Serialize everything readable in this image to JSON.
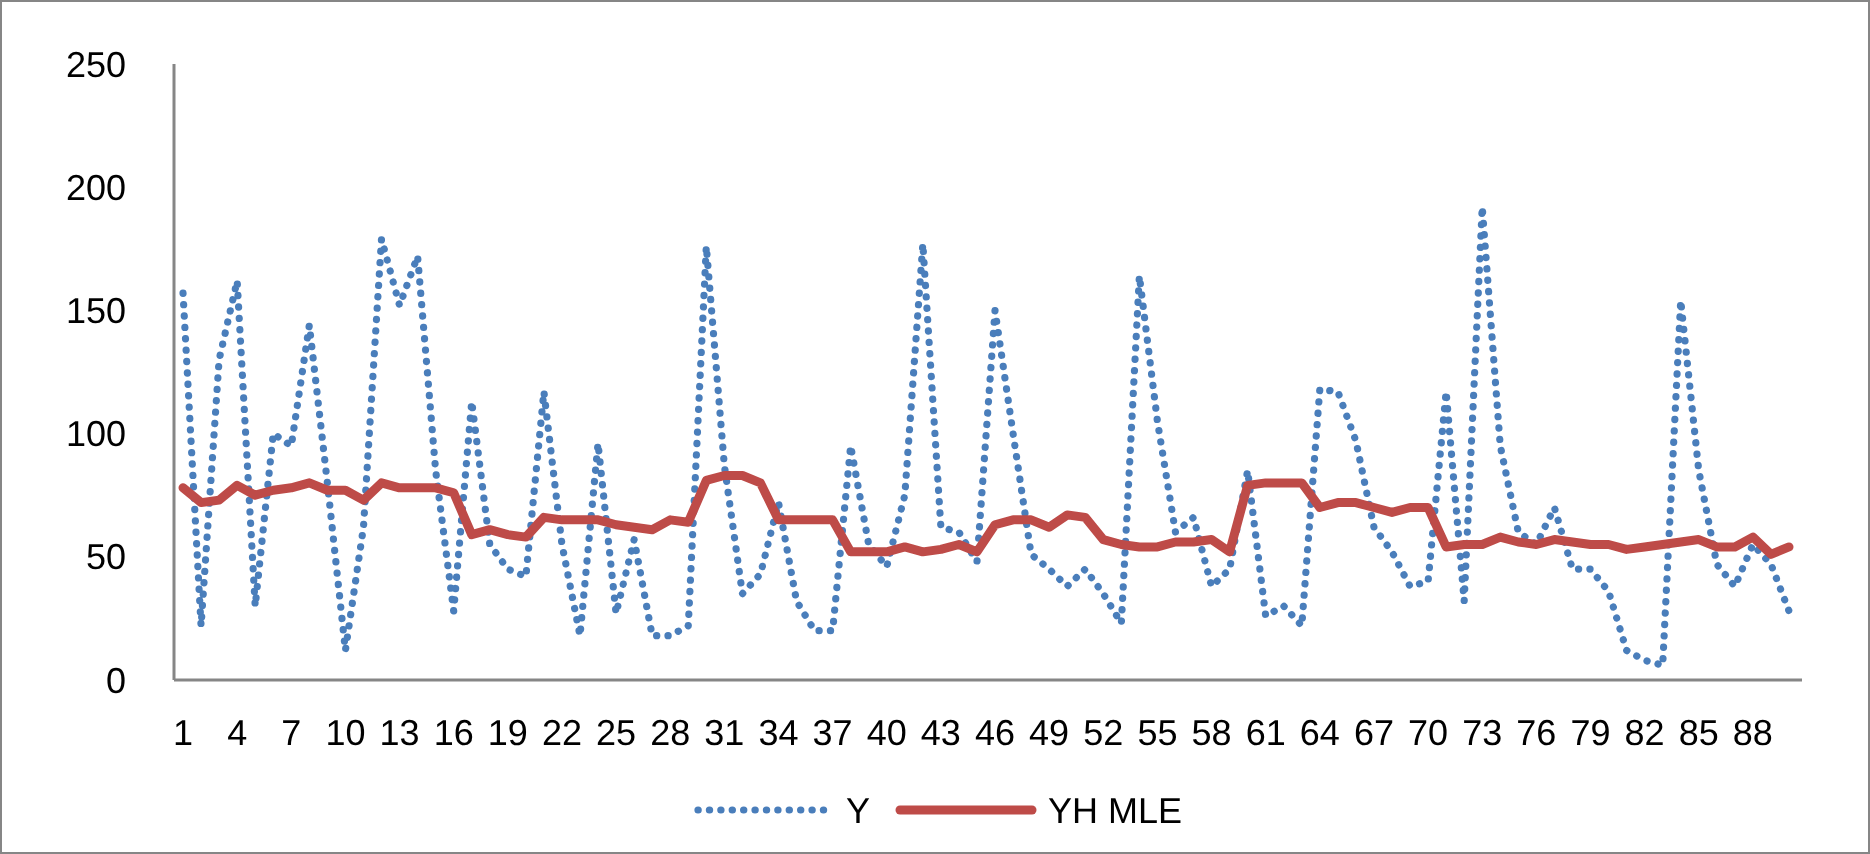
{
  "chart_data": {
    "type": "line",
    "categories": [
      "1",
      null,
      null,
      "4",
      null,
      null,
      "7",
      null,
      null,
      "10",
      null,
      null,
      "13",
      null,
      null,
      "16",
      null,
      null,
      "19",
      null,
      null,
      "22",
      null,
      null,
      "25",
      null,
      null,
      "28",
      null,
      null,
      "31",
      null,
      null,
      "34",
      null,
      null,
      "37",
      null,
      null,
      "40",
      null,
      null,
      "43",
      null,
      null,
      "46",
      null,
      null,
      "49",
      null,
      null,
      "52",
      null,
      null,
      "55",
      null,
      null,
      "58",
      null,
      null,
      "61",
      null,
      null,
      "64",
      null,
      null,
      "67",
      null,
      null,
      "70",
      null,
      null,
      "73",
      null,
      null,
      "76",
      null,
      null,
      "79",
      null,
      null,
      "82",
      null,
      null,
      "85",
      null,
      null,
      "88",
      null,
      null
    ],
    "ylim": [
      0,
      250
    ],
    "yticks": [
      0,
      50,
      100,
      150,
      200,
      250
    ],
    "legend": "bottom",
    "series": [
      {
        "name": "Y",
        "color": "#4a7ebb",
        "line_style": "dotted",
        "values": [
          157,
          22,
          130,
          162,
          30,
          100,
          95,
          144,
          80,
          12,
          62,
          179,
          152,
          172,
          85,
          28,
          113,
          55,
          45,
          42,
          117,
          55,
          18,
          96,
          27,
          57,
          18,
          18,
          22,
          176,
          87,
          35,
          43,
          72,
          32,
          20,
          20,
          95,
          55,
          46,
          75,
          177,
          62,
          60,
          48,
          150,
          100,
          51,
          45,
          38,
          45,
          35,
          23,
          164,
          105,
          60,
          66,
          38,
          45,
          85,
          26,
          30,
          22,
          118,
          117,
          97,
          62,
          52,
          38,
          40,
          117,
          32,
          192,
          95,
          60,
          55,
          70,
          45,
          45,
          36,
          12,
          8,
          6,
          154,
          85,
          47,
          38,
          55,
          47,
          28
        ]
      },
      {
        "name": "YH MLE",
        "color": "#be4b48",
        "line_style": "solid",
        "values": [
          78,
          72,
          73,
          79,
          75,
          77,
          78,
          80,
          77,
          77,
          73,
          80,
          78,
          78,
          78,
          76,
          59,
          61,
          59,
          58,
          66,
          65,
          65,
          65,
          63,
          62,
          61,
          65,
          64,
          81,
          83,
          83,
          80,
          65,
          65,
          65,
          65,
          52,
          52,
          52,
          54,
          52,
          53,
          55,
          52,
          63,
          65,
          65,
          62,
          67,
          66,
          57,
          55,
          54,
          54,
          56,
          56,
          57,
          52,
          79,
          80,
          80,
          80,
          70,
          72,
          72,
          70,
          68,
          70,
          70,
          54,
          55,
          55,
          58,
          56,
          55,
          57,
          56,
          55,
          55,
          53,
          54,
          55,
          56,
          57,
          54,
          54,
          58,
          51,
          54
        ]
      }
    ]
  }
}
